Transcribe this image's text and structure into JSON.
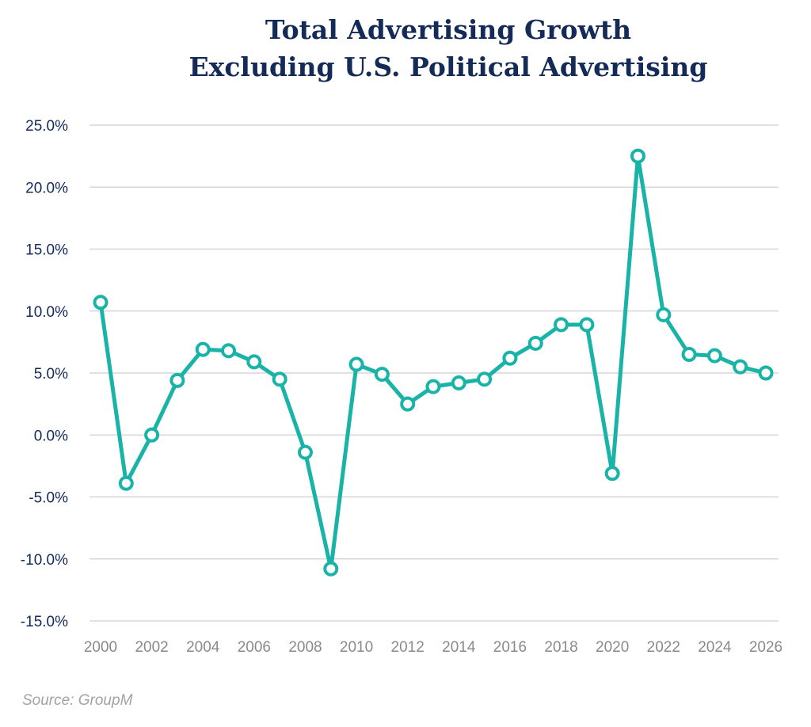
{
  "chart_data": {
    "type": "line",
    "title": "Total Advertising Growth",
    "subtitle": "Excluding U.S. Political Advertising",
    "xlabel": "",
    "ylabel": "",
    "x": [
      2000,
      2001,
      2002,
      2003,
      2004,
      2005,
      2006,
      2007,
      2008,
      2009,
      2010,
      2011,
      2012,
      2013,
      2014,
      2015,
      2016,
      2017,
      2018,
      2019,
      2020,
      2021,
      2022,
      2023,
      2024,
      2025,
      2026
    ],
    "series": [
      {
        "values": [
          10.7,
          -3.9,
          0.0,
          4.4,
          6.9,
          6.8,
          5.9,
          4.5,
          -1.4,
          -10.8,
          5.7,
          4.9,
          2.5,
          3.9,
          4.2,
          4.5,
          6.2,
          7.4,
          8.9,
          8.9,
          -3.1,
          22.5,
          9.7,
          6.5,
          6.4,
          5.5,
          5.0
        ]
      }
    ],
    "x_ticks": [
      "2000",
      "2002",
      "2004",
      "2006",
      "2008",
      "2010",
      "2012",
      "2014",
      "2016",
      "2018",
      "2020",
      "2022",
      "2024",
      "2026"
    ],
    "y_ticks": [
      "25.0%",
      "20.0%",
      "15.0%",
      "10.0%",
      "5.0%",
      "0.0%",
      "-5.0%",
      "-10.0%",
      "-15.0%"
    ],
    "ylim": [
      -15,
      25
    ],
    "xlim": [
      2000,
      2026
    ],
    "grid": "horizontal",
    "legend": "none",
    "line_color": "#19b3a8",
    "grid_color": "#cfcfcf",
    "y_tick_color": "#142a57",
    "x_tick_color": "#8a8a8a"
  },
  "source": "Source: GroupM"
}
